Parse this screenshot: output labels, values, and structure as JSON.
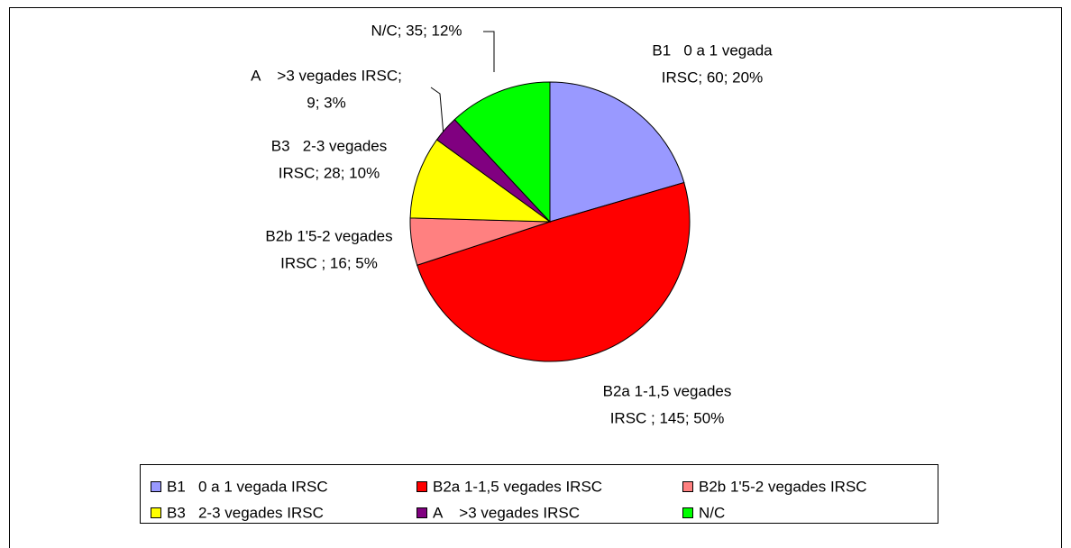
{
  "chart_data": {
    "type": "pie",
    "categories": [
      "B1   0 a 1 vegada IRSC",
      "B2a 1-1,5 vegades IRSC",
      "B2b 1'5-2 vegades IRSC",
      "B3   2-3 vegades IRSC",
      "A    >3 vegades IRSC",
      "N/C"
    ],
    "values": [
      60,
      145,
      16,
      28,
      9,
      35
    ],
    "value_labels": [
      [
        "B1   0 a 1 vegada",
        "IRSC; 60; 20%"
      ],
      [
        "B2a 1-1,5 vegades",
        "IRSC ; 145; 50%"
      ],
      [
        "B2b 1'5-2 vegades",
        "IRSC ; 16; 5%"
      ],
      [
        "B3   2-3 vegades",
        "IRSC; 28; 10%"
      ],
      [
        "A    >3 vegades IRSC;",
        "9; 3%"
      ],
      [
        "N/C; 35; 12%"
      ]
    ],
    "colors": [
      "#9999ff",
      "#ff0000",
      "#ff8080",
      "#ffff00",
      "#800080",
      "#00ff00"
    ],
    "legend": "bottom"
  }
}
